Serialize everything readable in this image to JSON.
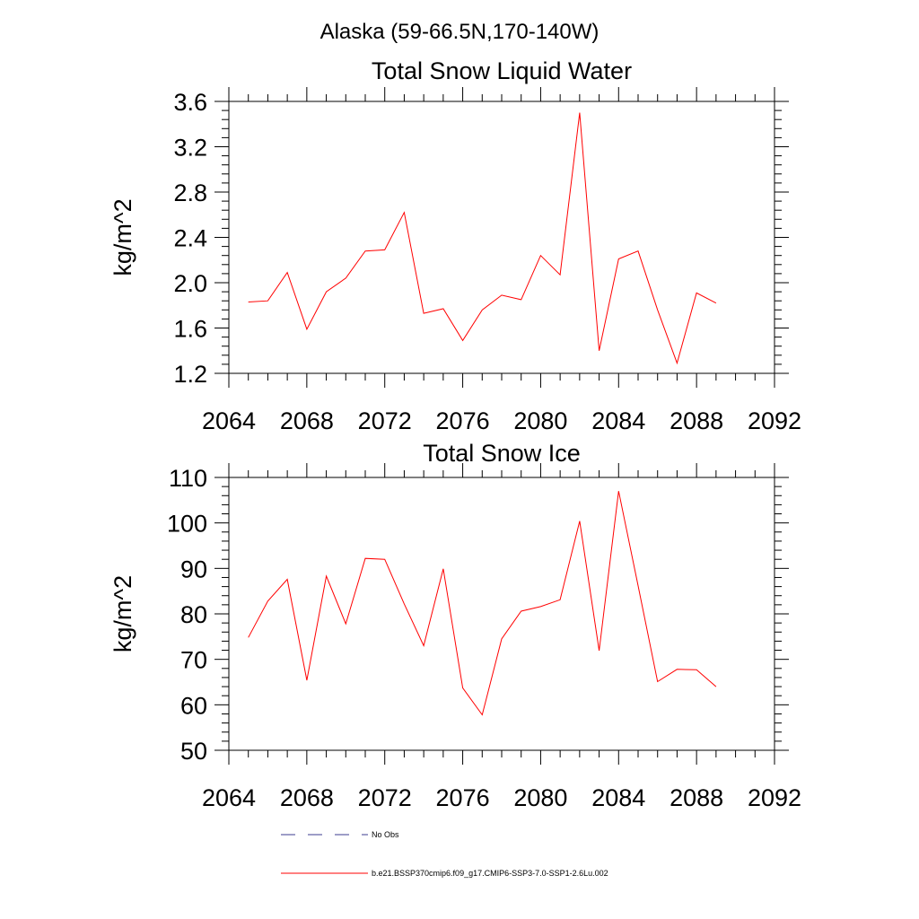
{
  "figure_title": "Alaska (59-66.5N,170-140W)",
  "legend": {
    "entries": [
      {
        "label": "No Obs",
        "color": "#3b3b8f",
        "style": "dashed"
      },
      {
        "label": "b.e21.BSSP370cmip6.f09_g17.CMIP6-SSP3-7.0-SSP1-2.6Lu.002",
        "color": "#ff0000",
        "style": "solid"
      }
    ]
  },
  "chart_data": [
    {
      "type": "line",
      "title": "Total Snow Liquid Water",
      "xlabel": "",
      "ylabel": "kg/m^2",
      "xlim": [
        2064,
        2092
      ],
      "ylim": [
        1.2,
        3.6
      ],
      "xticks": [
        "2064",
        "2068",
        "2072",
        "2076",
        "2080",
        "2084",
        "2088",
        "2092"
      ],
      "yticks": [
        "1.2",
        "1.6",
        "2.0",
        "2.4",
        "2.8",
        "3.2",
        "3.6"
      ],
      "grid": false,
      "series": [
        {
          "name": "b.e21.BSSP370cmip6.f09_g17.CMIP6-SSP3-7.0-SSP1-2.6Lu.002",
          "color": "#ff0000",
          "x": [
            2065,
            2066,
            2067,
            2068,
            2069,
            2070,
            2071,
            2072,
            2073,
            2074,
            2075,
            2076,
            2077,
            2078,
            2079,
            2080,
            2081,
            2082,
            2083,
            2084,
            2085,
            2086,
            2087,
            2088,
            2089
          ],
          "y": [
            1.83,
            1.84,
            2.09,
            1.59,
            1.92,
            2.04,
            2.28,
            2.29,
            2.62,
            1.73,
            1.77,
            1.49,
            1.76,
            1.89,
            1.85,
            2.24,
            2.07,
            3.5,
            1.4,
            2.21,
            2.28,
            1.76,
            1.29,
            1.91,
            1.82
          ]
        }
      ]
    },
    {
      "type": "line",
      "title": "Total Snow Ice",
      "xlabel": "",
      "ylabel": "kg/m^2",
      "xlim": [
        2064,
        2092
      ],
      "ylim": [
        50,
        110
      ],
      "xticks": [
        "2064",
        "2068",
        "2072",
        "2076",
        "2080",
        "2084",
        "2088",
        "2092"
      ],
      "yticks": [
        "50",
        "60",
        "70",
        "80",
        "90",
        "100",
        "110"
      ],
      "grid": false,
      "series": [
        {
          "name": "b.e21.BSSP370cmip6.f09_g17.CMIP6-SSP3-7.0-SSP1-2.6Lu.002",
          "color": "#ff0000",
          "x": [
            2065,
            2066,
            2067,
            2068,
            2069,
            2070,
            2071,
            2072,
            2073,
            2074,
            2075,
            2076,
            2077,
            2078,
            2079,
            2080,
            2081,
            2082,
            2083,
            2084,
            2085,
            2086,
            2087,
            2088,
            2089
          ],
          "y": [
            74.8,
            82.8,
            87.6,
            65.4,
            88.3,
            77.8,
            92.2,
            92.0,
            82.2,
            73.0,
            89.9,
            63.7,
            57.8,
            74.5,
            80.6,
            81.6,
            83.1,
            100.4,
            71.9,
            107.0,
            86.2,
            65.1,
            67.8,
            67.7,
            64.0
          ]
        }
      ]
    }
  ]
}
